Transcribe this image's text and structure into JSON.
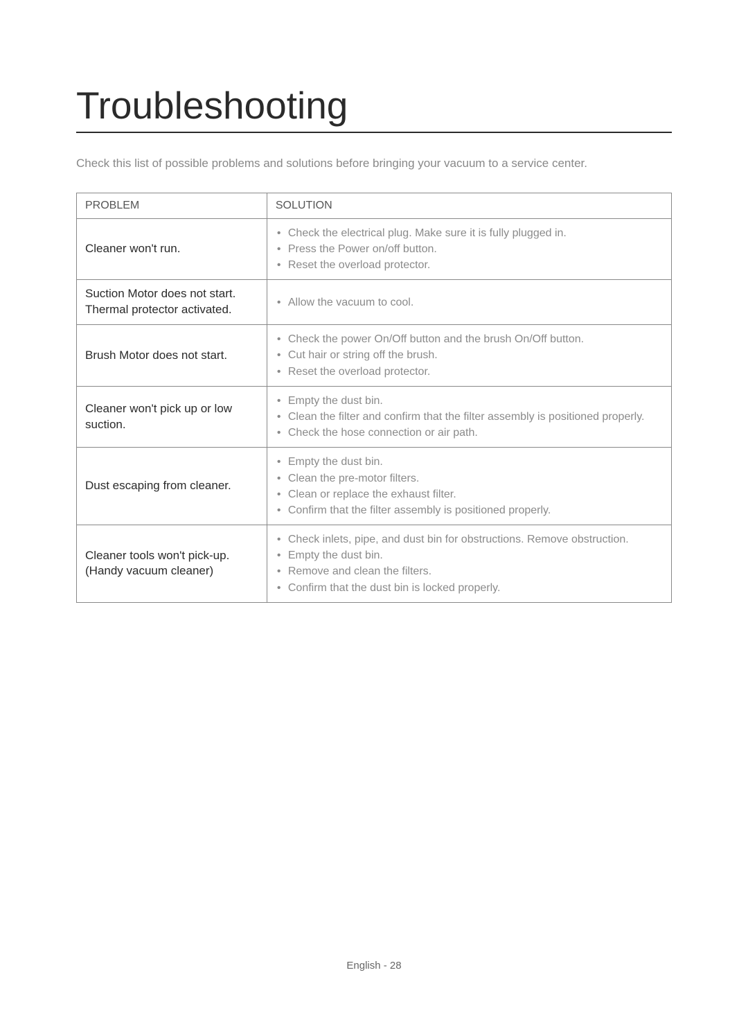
{
  "title": "Troubleshooting",
  "intro": "Check this list of possible problems and solutions before bringing your vacuum to a service center.",
  "table": {
    "headers": {
      "problem": "PROBLEM",
      "solution": "SOLUTION"
    },
    "rows": [
      {
        "problem": "Cleaner won't run.",
        "solutions": [
          "Check the electrical plug. Make sure it is fully plugged in.",
          "Press the Power on/off button.",
          "Reset the overload protector."
        ]
      },
      {
        "problem": "Suction Motor does not start.\nThermal protector activated.",
        "solutions": [
          "Allow the vacuum to cool."
        ]
      },
      {
        "problem": "Brush Motor does not start.",
        "solutions": [
          "Check the power On/Off button and the brush On/Off button.",
          "Cut hair or string off the brush.",
          "Reset the overload protector."
        ]
      },
      {
        "problem": "Cleaner won't pick up or low suction.",
        "solutions": [
          "Empty the dust bin.",
          "Clean the filter and confirm that the filter assembly is positioned properly.",
          "Check the hose connection or air path."
        ]
      },
      {
        "problem": "Dust escaping from cleaner.",
        "solutions": [
          "Empty the dust bin.",
          "Clean the pre-motor filters.",
          "Clean or replace the exhaust filter.",
          "Confirm that the filter assembly is positioned properly."
        ]
      },
      {
        "problem": "Cleaner tools won't pick-up.\n(Handy vacuum cleaner)",
        "solutions": [
          "Check inlets, pipe, and dust bin for obstructions. Remove obstruction.",
          "Empty the dust bin.",
          "Remove and clean the filters.",
          "Confirm that the dust bin is locked properly."
        ]
      }
    ]
  },
  "footer": "English - 28",
  "styling": {
    "page_bg": "#ffffff",
    "title_color": "#2a2a2a",
    "title_fontsize": 55,
    "intro_color": "#888888",
    "intro_fontsize": 17,
    "border_color": "#888888",
    "problem_text_color": "#2a2a2a",
    "solution_text_color": "#8a8a8a",
    "header_text_color": "#555555",
    "footer_color": "#666666",
    "problem_col_width_pct": 32
  }
}
